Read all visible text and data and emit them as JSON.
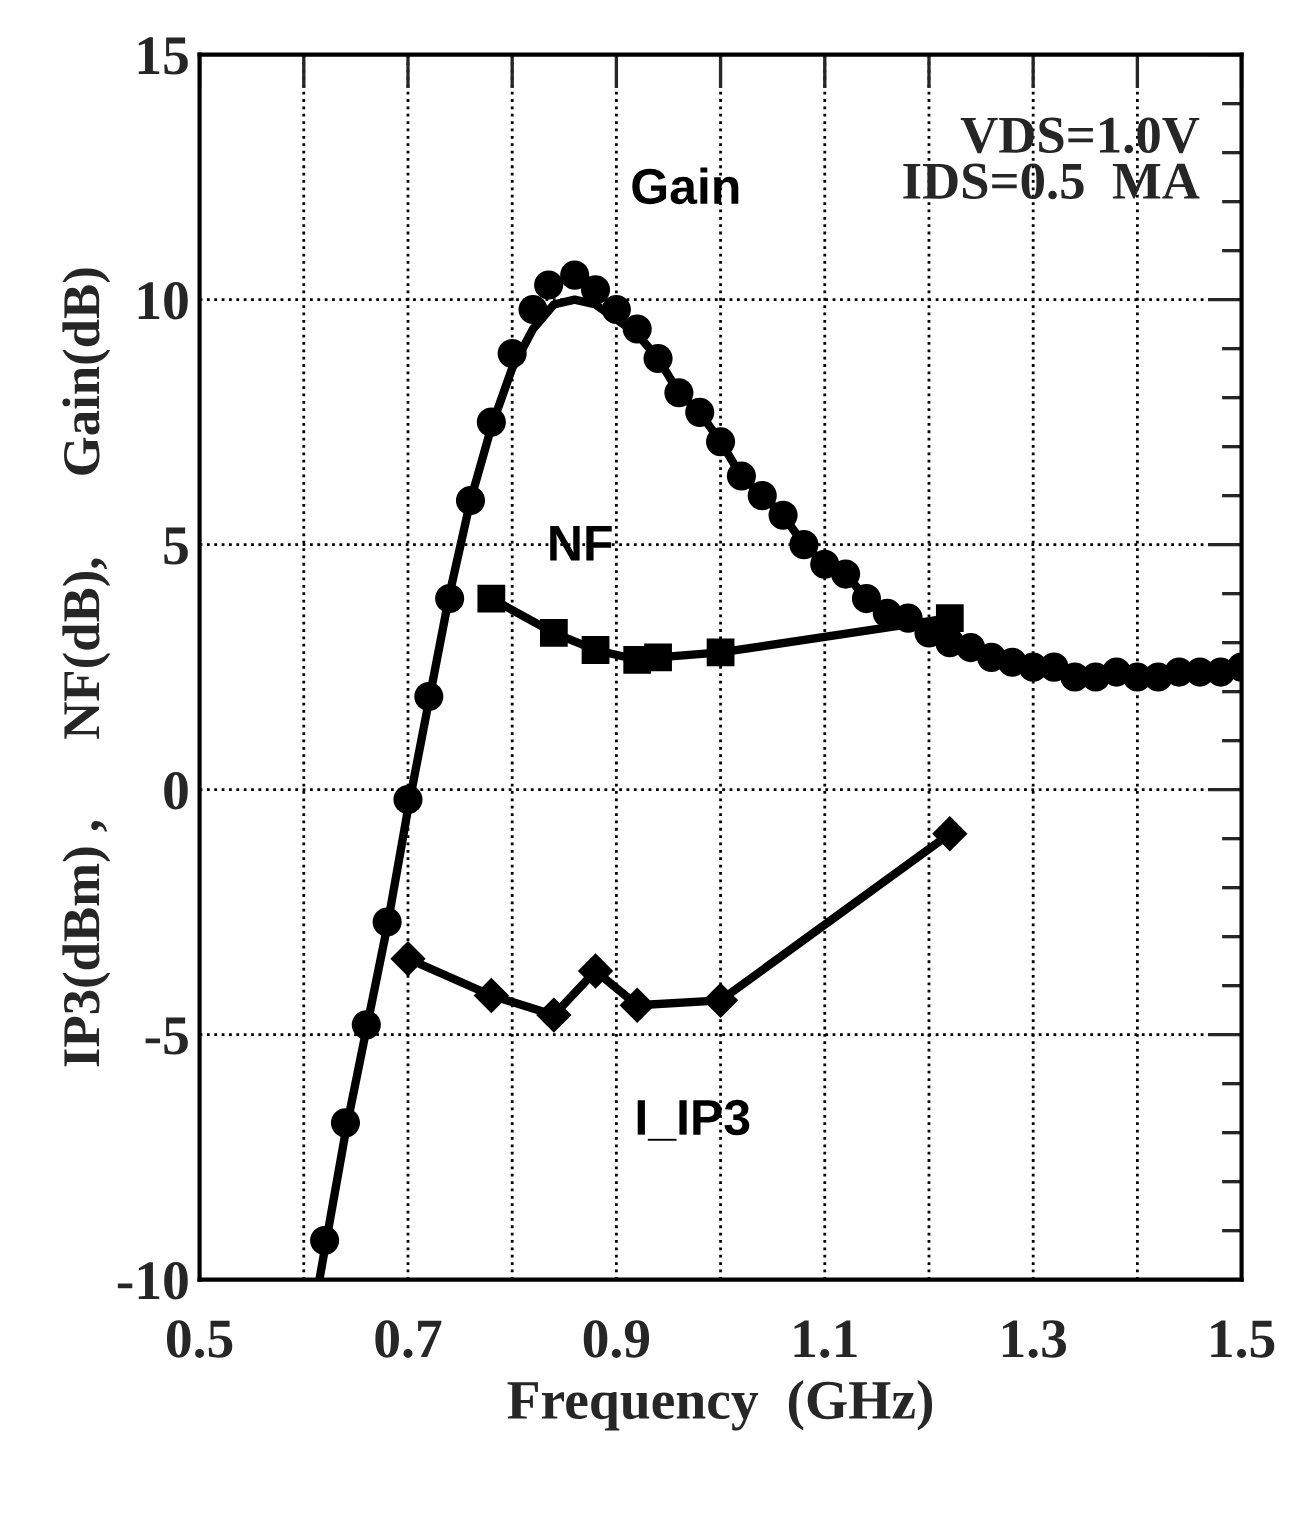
{
  "chart_data": {
    "type": "line",
    "xlabel": "Frequency  (GHz)",
    "ylabel": "IP3(dBm) ,      NF(dB),      Gain(dB)",
    "xlim": [
      0.5,
      1.5
    ],
    "ylim": [
      -10,
      15
    ],
    "xticks": [
      0.5,
      {
        "value": 0.6,
        "label": null
      },
      0.7,
      {
        "value": 0.8,
        "label": null
      },
      0.9,
      {
        "value": 1.0,
        "label": null
      },
      1.1,
      {
        "value": 1.2,
        "label": null
      },
      1.3,
      {
        "value": 1.4,
        "label": null
      },
      1.5
    ],
    "yticks": [
      -10,
      {
        "value": -9,
        "label": null
      },
      {
        "value": -8,
        "label": null
      },
      {
        "value": -7,
        "label": null
      },
      {
        "value": -6,
        "label": null
      },
      -5,
      {
        "value": -4,
        "label": null
      },
      {
        "value": -3,
        "label": null
      },
      {
        "value": -2,
        "label": null
      },
      {
        "value": -1,
        "label": null
      },
      0,
      {
        "value": 1,
        "label": null
      },
      {
        "value": 2,
        "label": null
      },
      {
        "value": 3,
        "label": null
      },
      {
        "value": 4,
        "label": null
      },
      5,
      {
        "value": 6,
        "label": null
      },
      {
        "value": 7,
        "label": null
      },
      {
        "value": 8,
        "label": null
      },
      {
        "value": 9,
        "label": null
      },
      10,
      {
        "value": 11,
        "label": null
      },
      {
        "value": 12,
        "label": null
      },
      {
        "value": 13,
        "label": null
      },
      {
        "value": 14,
        "label": null
      },
      15
    ],
    "grid": true,
    "legend": false,
    "annotations": [
      "VDS=1.0V\nIDS=0.5  MA"
    ],
    "series": [
      {
        "name": "Gain",
        "type": "scatter",
        "marker": "circle",
        "color": "#000000",
        "x": [
          0.62,
          0.64,
          0.66,
          0.68,
          0.7,
          0.72,
          0.74,
          0.76,
          0.78,
          0.8,
          0.82,
          0.835,
          0.86,
          0.88,
          0.9,
          0.92,
          0.94,
          0.96,
          0.98,
          1.0,
          1.02,
          1.04,
          1.06,
          1.08,
          1.1,
          1.12,
          1.14,
          1.16,
          1.18,
          1.2,
          1.22,
          1.24,
          1.26,
          1.28,
          1.3,
          1.32,
          1.34,
          1.36,
          1.38,
          1.4,
          1.42,
          1.44,
          1.46,
          1.48,
          1.5
        ],
        "values": [
          -9.2,
          -6.8,
          -4.8,
          -2.7,
          -0.2,
          1.9,
          3.9,
          5.9,
          7.5,
          8.9,
          9.8,
          10.3,
          10.5,
          10.2,
          9.8,
          9.4,
          8.8,
          8.1,
          7.7,
          7.1,
          6.4,
          6.0,
          5.6,
          5.0,
          4.6,
          4.4,
          3.9,
          3.6,
          3.5,
          3.2,
          3.0,
          2.9,
          2.7,
          2.6,
          2.5,
          2.5,
          2.3,
          2.3,
          2.4,
          2.3,
          2.3,
          2.4,
          2.4,
          2.4,
          2.5
        ]
      },
      {
        "marker": "none",
        "color": "#000000",
        "x": [
          0.615,
          0.64,
          0.66,
          0.68,
          0.7,
          0.72,
          0.74,
          0.76,
          0.78,
          0.8,
          0.82,
          0.84,
          0.86,
          0.88,
          0.9,
          0.92,
          0.94,
          0.96,
          0.98,
          1.0,
          1.02,
          1.04,
          1.06,
          1.08,
          1.1,
          1.12,
          1.14,
          1.16,
          1.18,
          1.2,
          1.22,
          1.24,
          1.26,
          1.28,
          1.3,
          1.32,
          1.34,
          1.36,
          1.38,
          1.4,
          1.42,
          1.44,
          1.46,
          1.48,
          1.5
        ],
        "values": [
          -10,
          -7,
          -4.9,
          -2.8,
          -0.4,
          1.8,
          4.0,
          5.9,
          7.4,
          8.6,
          9.4,
          9.9,
          10.0,
          9.9,
          9.6,
          9.3,
          8.8,
          8.1,
          7.7,
          7.1,
          6.4,
          6.0,
          5.6,
          5.0,
          4.6,
          4.4,
          3.9,
          3.6,
          3.5,
          3.2,
          3.0,
          2.9,
          2.7,
          2.6,
          2.5,
          2.5,
          2.3,
          2.3,
          2.4,
          2.3,
          2.3,
          2.4,
          2.4,
          2.4,
          2.5
        ]
      },
      {
        "name": "NF",
        "marker": "square",
        "color": "#000000",
        "x": [
          0.78,
          0.84,
          0.88,
          0.92,
          0.94,
          1.0,
          1.22
        ],
        "values": [
          3.9,
          3.2,
          2.85,
          2.65,
          2.7,
          2.8,
          3.5
        ]
      },
      {
        "name": "I_IP3",
        "marker": "diamond",
        "color": "#000000",
        "x": [
          0.7,
          0.78,
          0.84,
          0.88,
          0.92,
          1.0,
          1.22
        ],
        "values": [
          -3.45,
          -4.2,
          -4.6,
          -3.7,
          -4.4,
          -4.3,
          -0.9
        ]
      }
    ]
  }
}
